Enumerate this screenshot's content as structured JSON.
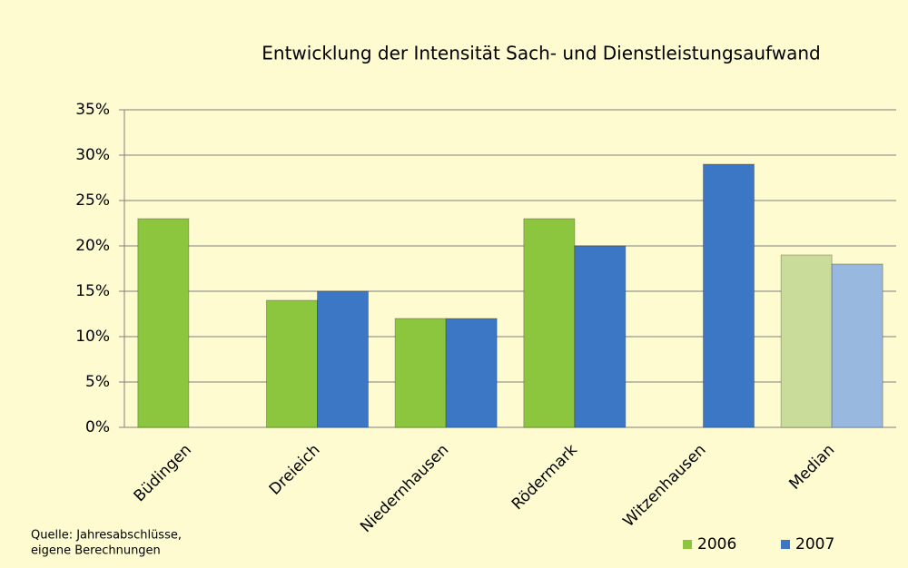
{
  "chart_data": {
    "type": "bar",
    "title": "Entwicklung der Intensität Sach- und Dienstleistungsaufwand",
    "categories": [
      "Büdingen",
      "Dreieich",
      "Niedernhausen",
      "Rödermark",
      "Witzenhausen",
      "Median"
    ],
    "series": [
      {
        "name": "2006",
        "color": "#8cc63f",
        "colors": [
          "#8cc63f",
          "#8cc63f",
          "#8cc63f",
          "#8cc63f",
          "#8cc63f",
          "#c9dc9a"
        ],
        "values": [
          23,
          14,
          12,
          23,
          null,
          19
        ]
      },
      {
        "name": "2007",
        "color": "#3b77c4",
        "colors": [
          "#3b77c4",
          "#3b77c4",
          "#3b77c4",
          "#3b77c4",
          "#3b77c4",
          "#99b8e0"
        ],
        "values": [
          null,
          15,
          12,
          20,
          29,
          18
        ]
      }
    ],
    "ylim": [
      0,
      35
    ],
    "yticks": [
      {
        "value": 0,
        "label": "0%"
      },
      {
        "value": 5,
        "label": "5%"
      },
      {
        "value": 10,
        "label": "10%"
      },
      {
        "value": 15,
        "label": "15%"
      },
      {
        "value": 20,
        "label": "20%"
      },
      {
        "value": 25,
        "label": "25%"
      },
      {
        "value": 30,
        "label": "30%"
      },
      {
        "value": 35,
        "label": "35%"
      }
    ],
    "grid": true,
    "legend": "bottom-right",
    "source": [
      "Quelle: Jahresabschlüsse,",
      "eigene Berechnungen"
    ]
  }
}
